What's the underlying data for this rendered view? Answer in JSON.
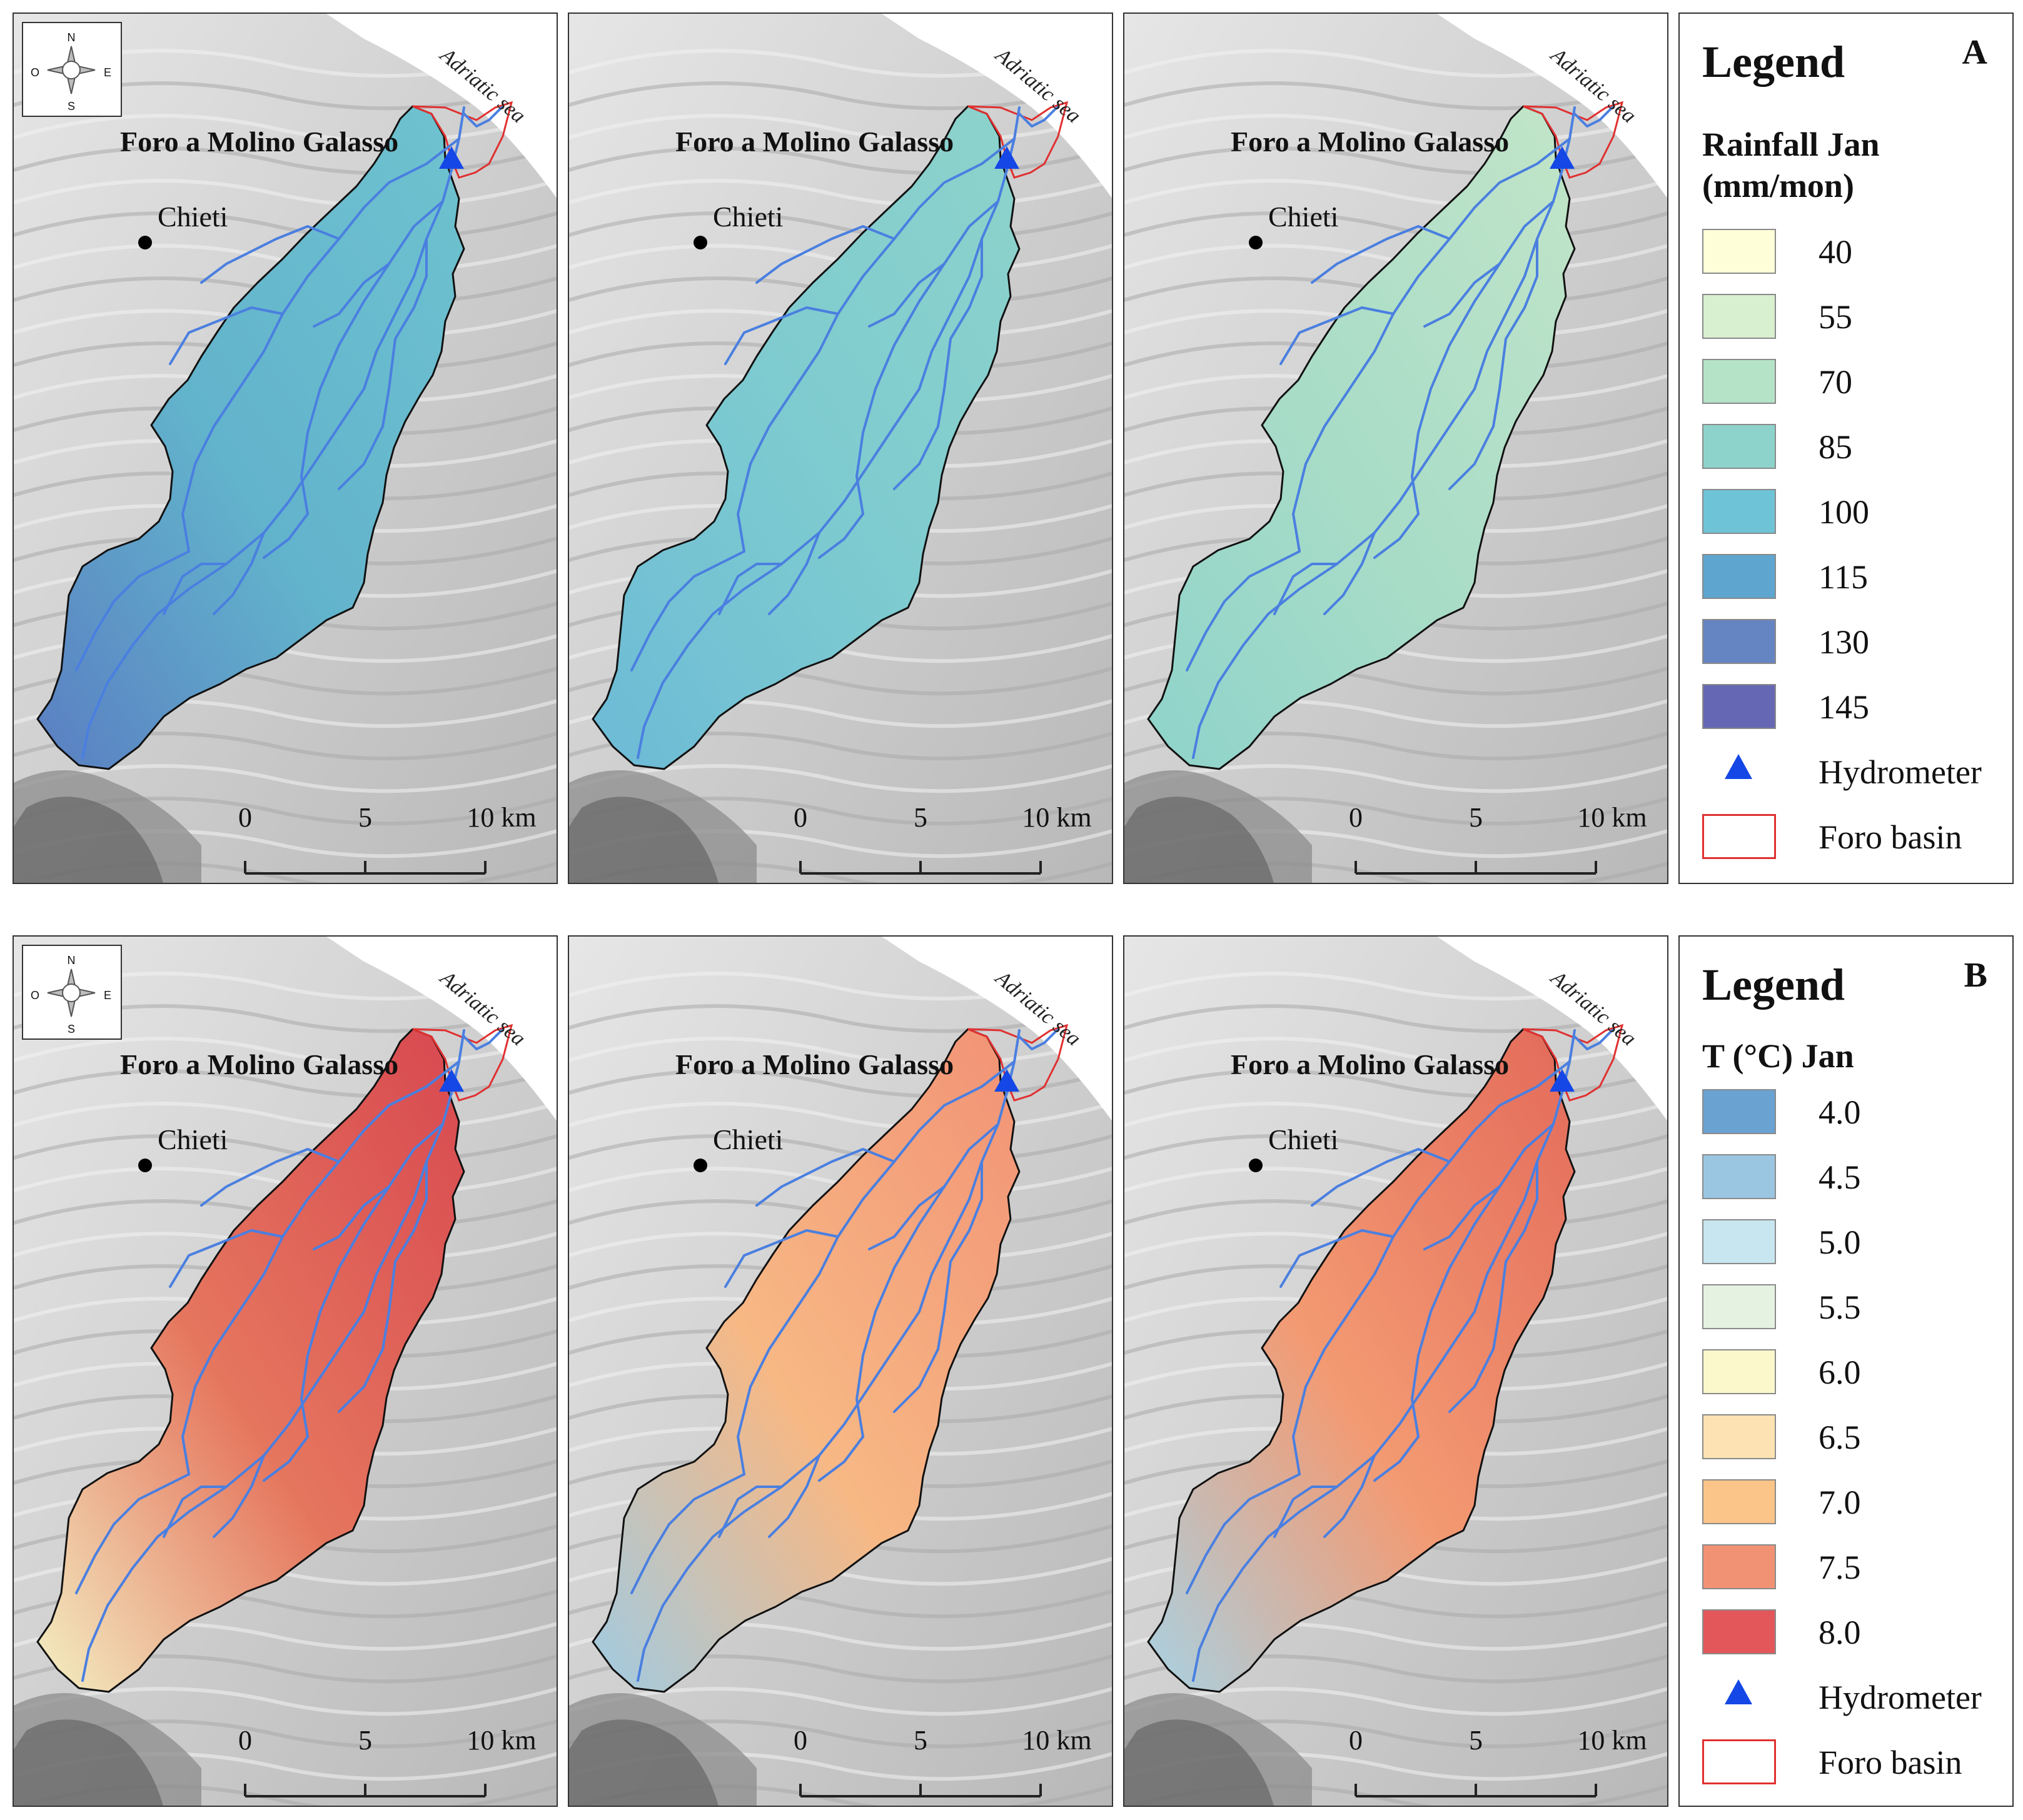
{
  "figure_sections": [
    {
      "letter": "A",
      "legend": {
        "title": "Legend",
        "variable": "Rainfall Jan\n(mm/mon)",
        "classes": [
          {
            "label": "40",
            "color": "#fefed8"
          },
          {
            "label": "55",
            "color": "#d8efd0"
          },
          {
            "label": "70",
            "color": "#b5e3c8"
          },
          {
            "label": "85",
            "color": "#8ed3cb"
          },
          {
            "label": "100",
            "color": "#6fc3d6"
          },
          {
            "label": "115",
            "color": "#5ea6cf"
          },
          {
            "label": "130",
            "color": "#6584c2"
          },
          {
            "label": "145",
            "color": "#6667b4"
          }
        ],
        "hydrometer_label": "Hydrometer",
        "basin_label": "Foro basin"
      }
    },
    {
      "letter": "B",
      "legend": {
        "title": "Legend",
        "variable": "T (°C) Jan",
        "classes": [
          {
            "label": "4.0",
            "color": "#6aa2d2"
          },
          {
            "label": "4.5",
            "color": "#9ac6e2"
          },
          {
            "label": "5.0",
            "color": "#c8e6ef"
          },
          {
            "label": "5.5",
            "color": "#e5f2e2"
          },
          {
            "label": "6.0",
            "color": "#fbf8cc"
          },
          {
            "label": "6.5",
            "color": "#fde3b3"
          },
          {
            "label": "7.0",
            "color": "#fbc488"
          },
          {
            "label": "7.5",
            "color": "#f29275"
          },
          {
            "label": "8.0",
            "color": "#e3575a"
          }
        ],
        "hydrometer_label": "Hydrometer",
        "basin_label": "Foro basin"
      }
    }
  ],
  "maps": [
    {
      "fill_top": "#6fc3cf",
      "fill_mid": "#62b3cc",
      "fill_bottom": "#5a7ec2"
    },
    {
      "fill_top": "#8ed3cb",
      "fill_mid": "#7ccad0",
      "fill_bottom": "#6cbad6"
    },
    {
      "fill_top": "#c2e5c8",
      "fill_mid": "#a8dcc7",
      "fill_bottom": "#8ed3cb"
    },
    {
      "fill_top": "#d84850",
      "fill_mid": "#e5765e",
      "fill_bottom": "#f3f0c4"
    },
    {
      "fill_top": "#f29275",
      "fill_mid": "#f7b884",
      "fill_bottom": "#9fcbe3"
    },
    {
      "fill_top": "#e36a5a",
      "fill_mid": "#f39a72",
      "fill_bottom": "#a8d2e3"
    }
  ],
  "map_labels": {
    "gauge_name": "Foro a Molino Galasso",
    "city_name": "Chieti",
    "sea_name": "Adriatic sea",
    "scale_ticks": [
      "0",
      "5",
      "10 km"
    ],
    "compass": {
      "n": "N",
      "s": "S",
      "e": "E",
      "w": "O"
    }
  },
  "colors": {
    "river": "#4a7fe0",
    "basin_outline": "#111111",
    "downstream_outline": "#e03030",
    "hydrometer": "#1447e6",
    "sea": "#ffffff",
    "hillshade": "#cfcfcf"
  }
}
